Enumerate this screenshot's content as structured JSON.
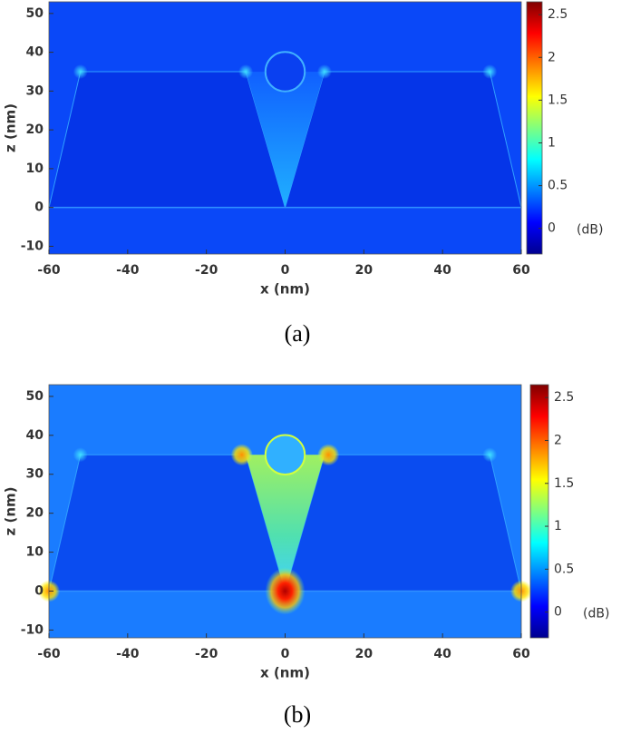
{
  "chart_data": [
    {
      "type": "heatmap",
      "caption": "(a)",
      "xlabel": "x (nm)",
      "ylabel": "z (nm)",
      "xlim": [
        -60,
        60
      ],
      "ylim": [
        -12,
        53
      ],
      "xticks": [
        -60,
        -40,
        -20,
        0,
        20,
        40,
        60
      ],
      "yticks": [
        -10,
        0,
        10,
        20,
        30,
        40,
        50
      ],
      "colorbar": {
        "label": "(dB)",
        "lim": [
          -0.3,
          2.65
        ],
        "ticks": [
          0,
          0.5,
          1,
          1.5,
          2,
          2.5
        ],
        "colormap": "jet"
      }
    },
    {
      "type": "heatmap",
      "caption": "(b)",
      "xlabel": "x (nm)",
      "ylabel": "z (nm)",
      "xlim": [
        -60,
        60
      ],
      "ylim": [
        -12,
        53
      ],
      "xticks": [
        -60,
        -40,
        -20,
        0,
        20,
        40,
        60
      ],
      "yticks": [
        -10,
        0,
        10,
        20,
        30,
        40,
        50
      ],
      "colorbar": {
        "label": "(dB)",
        "lim": [
          -0.3,
          2.65
        ],
        "ticks": [
          0,
          0.5,
          1,
          1.5,
          2,
          2.5
        ],
        "colormap": "jet"
      }
    }
  ]
}
